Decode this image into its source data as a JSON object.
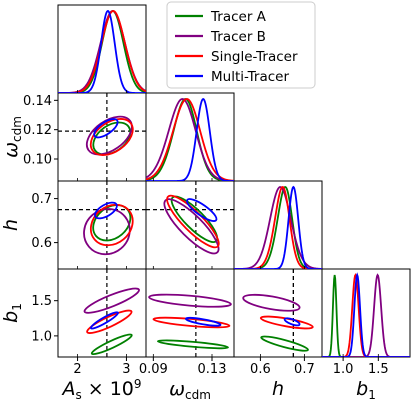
{
  "chart_data": {
    "type": "corner",
    "params": [
      {
        "id": "As",
        "label_main": "A",
        "label_sub": "s",
        "label_suffix": " × 10",
        "label_sup": "9",
        "range": [
          1.6,
          3.4
        ],
        "ticks": [
          2,
          3
        ],
        "tick_labels": [
          "2",
          "3"
        ],
        "truth": 2.6
      },
      {
        "id": "wcdm",
        "label_main": "ω",
        "label_sub": "cdm",
        "range": [
          0.085,
          0.145
        ],
        "ticks": [
          0.09,
          0.13
        ],
        "tick_labels": [
          "0.09",
          "0.13"
        ],
        "y_ticks": [
          0.1,
          0.12,
          0.14
        ],
        "y_tick_labels": [
          "0.10",
          "0.12",
          "0.14"
        ],
        "truth": 0.119
      },
      {
        "id": "h",
        "label_main": "h",
        "range": [
          0.54,
          0.74
        ],
        "ticks": [
          0.6,
          0.7
        ],
        "tick_labels": [
          "0.6",
          "0.7"
        ],
        "y_ticks": [
          0.6,
          0.7
        ],
        "y_tick_labels": [
          "0.6",
          "0.7"
        ],
        "truth": 0.675
      },
      {
        "id": "b1",
        "label_main": "b",
        "label_sub": "1",
        "range": [
          0.7,
          1.95
        ],
        "ticks": [
          1.0,
          1.5
        ],
        "tick_labels": [
          "1.0",
          "1.5"
        ],
        "y_ticks": [
          1.0,
          1.5
        ],
        "y_tick_labels": [
          "1.0",
          "1.5"
        ]
      }
    ],
    "series": [
      {
        "name": "Tracer A",
        "color": "#008000",
        "marginals": [
          {
            "mu": 2.72,
            "sd": 0.22
          },
          {
            "mu": 0.117,
            "sd": 0.01,
            "skew": -1.0
          },
          {
            "mu": 0.668,
            "sd": 0.022,
            "skew": -1.2
          },
          {
            "mu": 0.88,
            "sd": 0.025
          }
        ],
        "contours": {
          "wcdm_As": {
            "cx": 2.7,
            "cy": 0.114,
            "rx": 0.42,
            "ry": 0.009,
            "rot": -35
          },
          "h_As": {
            "cx": 2.7,
            "cy": 0.645,
            "rx": 0.42,
            "ry": 0.035,
            "rot": -40
          },
          "h_wcdm": {
            "cx": 0.118,
            "cy": 0.653,
            "rx": 0.021,
            "ry": 0.021,
            "rot": 45
          },
          "b1_As": {
            "cx": 2.7,
            "cy": 0.88,
            "rx": 0.45,
            "ry": 0.05,
            "rot": -25
          },
          "b1_wcdm": {
            "cx": 0.117,
            "cy": 0.88,
            "rx": 0.024,
            "ry": 0.035,
            "rot": 5
          },
          "b1_h": {
            "cx": 0.655,
            "cy": 0.89,
            "rx": 0.055,
            "ry": 0.05,
            "rot": 15
          }
        }
      },
      {
        "name": "Tracer B",
        "color": "#800080",
        "marginals": [
          {
            "mu": 2.72,
            "sd": 0.25
          },
          {
            "mu": 0.115,
            "sd": 0.011,
            "skew": -0.8
          },
          {
            "mu": 0.632,
            "sd": 0.028,
            "skew": 0.8
          },
          {
            "mu": 1.49,
            "sd": 0.05
          }
        ],
        "contours": {
          "wcdm_As": {
            "cx": 2.65,
            "cy": 0.116,
            "rx": 0.52,
            "ry": 0.01,
            "rot": -35
          },
          "h_As": {
            "cx": 2.6,
            "cy": 0.625,
            "rx": 0.48,
            "ry": 0.05,
            "rot": -40
          },
          "h_wcdm": {
            "cx": 0.116,
            "cy": 0.637,
            "rx": 0.025,
            "ry": 0.025,
            "rot": 45
          },
          "b1_As": {
            "cx": 2.7,
            "cy": 1.5,
            "rx": 0.6,
            "ry": 0.08,
            "rot": -22
          },
          "b1_wcdm": {
            "cx": 0.115,
            "cy": 1.5,
            "rx": 0.028,
            "ry": 0.07,
            "rot": 5
          },
          "b1_h": {
            "cx": 0.625,
            "cy": 1.47,
            "rx": 0.065,
            "ry": 0.09,
            "rot": 10
          }
        }
      },
      {
        "name": "Single-Tracer",
        "color": "#ff0000",
        "marginals": [
          {
            "mu": 2.73,
            "sd": 0.24
          },
          {
            "mu": 0.118,
            "sd": 0.011,
            "skew": -0.8
          },
          {
            "mu": 0.662,
            "sd": 0.022,
            "skew": -1.2
          },
          {
            "mu": 1.175,
            "sd": 0.045
          }
        ],
        "contours": {
          "wcdm_As": {
            "cx": 2.7,
            "cy": 0.115,
            "rx": 0.48,
            "ry": 0.01,
            "rot": -35
          },
          "h_As": {
            "cx": 2.7,
            "cy": 0.64,
            "rx": 0.46,
            "ry": 0.042,
            "rot": -40
          },
          "h_wcdm": {
            "cx": 0.117,
            "cy": 0.648,
            "rx": 0.024,
            "ry": 0.022,
            "rot": 45
          },
          "b1_As": {
            "cx": 2.65,
            "cy": 1.2,
            "rx": 0.5,
            "ry": 0.07,
            "rot": -25
          },
          "b1_wcdm": {
            "cx": 0.116,
            "cy": 1.19,
            "rx": 0.026,
            "ry": 0.05,
            "rot": 5
          },
          "b1_h": {
            "cx": 0.66,
            "cy": 1.19,
            "rx": 0.06,
            "ry": 0.055,
            "rot": 10
          }
        }
      },
      {
        "name": "Multi-Tracer",
        "color": "#0000ff",
        "marginals": [
          {
            "mu": 2.62,
            "sd": 0.14
          },
          {
            "mu": 0.124,
            "sd": 0.0045
          },
          {
            "mu": 0.675,
            "sd": 0.011
          },
          {
            "mu": 1.2,
            "sd": 0.04
          }
        ],
        "contours": {
          "wcdm_As": {
            "cx": 2.58,
            "cy": 0.121,
            "rx": 0.28,
            "ry": 0.004,
            "rot": -35
          },
          "h_As": {
            "cx": 2.58,
            "cy": 0.673,
            "rx": 0.25,
            "ry": 0.013,
            "rot": -30
          },
          "h_wcdm": {
            "cx": 0.123,
            "cy": 0.674,
            "rx": 0.012,
            "ry": 0.012,
            "rot": 35
          },
          "b1_As": {
            "cx": 2.55,
            "cy": 1.22,
            "rx": 0.32,
            "ry": 0.04,
            "rot": -30
          },
          "b1_wcdm": {
            "cx": 0.124,
            "cy": 1.2,
            "rx": 0.012,
            "ry": 0.035,
            "rot": 10
          },
          "b1_h": {
            "cx": 0.672,
            "cy": 1.2,
            "rx": 0.018,
            "ry": 0.035,
            "rot": 20
          }
        }
      }
    ],
    "legend": {
      "placement": "top-right"
    }
  }
}
